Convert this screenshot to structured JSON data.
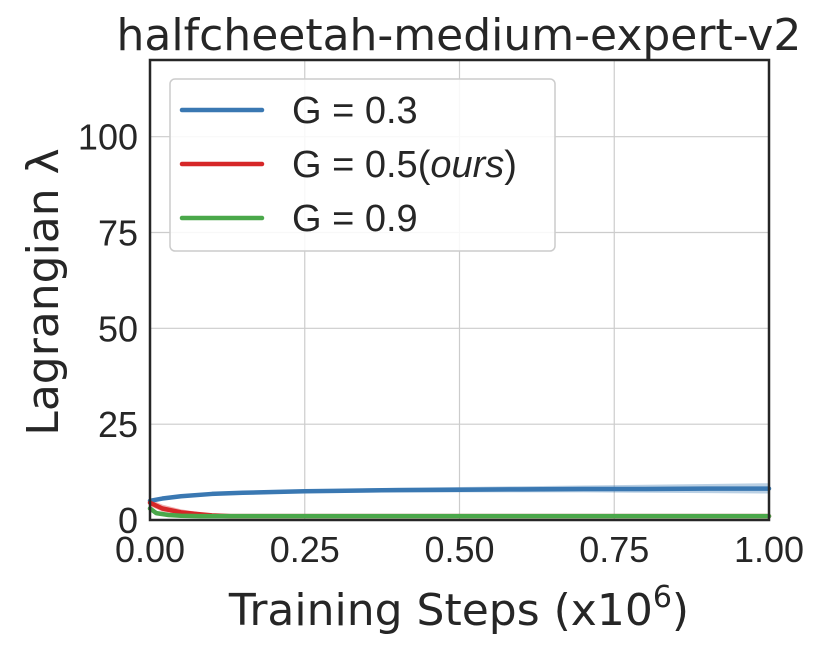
{
  "chart_data": {
    "type": "line",
    "title": "halfcheetah-medium-expert-v2",
    "xlabel": "Training Steps (x10",
    "xlabel_exponent": "6",
    "xlabel_close": ")",
    "ylabel": "Lagrangian λ",
    "xlim": [
      0.0,
      1.0
    ],
    "ylim": [
      0,
      120
    ],
    "xticks": [
      "0.00",
      "0.25",
      "0.50",
      "0.75",
      "1.00"
    ],
    "xtick_values": [
      0.0,
      0.25,
      0.5,
      0.75,
      1.0
    ],
    "yticks": [
      "0",
      "25",
      "50",
      "75",
      "100"
    ],
    "ytick_values": [
      0,
      25,
      50,
      75,
      100
    ],
    "grid": true,
    "legend_position": "top-left",
    "series": [
      {
        "name": "G = 0.3",
        "legend_main": "G = 0.3",
        "legend_suffix": "",
        "color": "#3a78b2",
        "x": [
          0.0,
          0.02,
          0.05,
          0.1,
          0.15,
          0.2,
          0.25,
          0.3,
          0.4,
          0.5,
          0.6,
          0.7,
          0.8,
          0.9,
          1.0
        ],
        "y": [
          5.0,
          5.6,
          6.2,
          6.8,
          7.1,
          7.3,
          7.5,
          7.6,
          7.8,
          7.9,
          8.0,
          8.1,
          8.1,
          8.2,
          8.2
        ],
        "lower": [
          4.6,
          5.2,
          5.8,
          6.4,
          6.7,
          6.9,
          7.0,
          7.1,
          7.2,
          7.2,
          7.2,
          7.2,
          7.1,
          7.0,
          6.9
        ],
        "upper": [
          5.4,
          6.0,
          6.6,
          7.2,
          7.5,
          7.7,
          8.0,
          8.1,
          8.4,
          8.6,
          8.8,
          9.0,
          9.2,
          9.4,
          9.6
        ]
      },
      {
        "name": "G = 0.5(ours)",
        "legend_main": "G = 0.5(",
        "legend_suffix": "ours",
        "legend_close": ")",
        "color": "#d62728",
        "x": [
          0.0,
          0.02,
          0.05,
          0.08,
          0.1,
          0.13,
          0.2,
          0.4,
          0.6,
          0.8,
          1.0
        ],
        "y": [
          4.5,
          3.0,
          2.0,
          1.5,
          1.2,
          1.0,
          1.0,
          1.0,
          1.0,
          1.0,
          1.0
        ],
        "lower": [
          3.6,
          2.2,
          1.4,
          1.1,
          0.9,
          0.8,
          0.8,
          0.8,
          0.8,
          0.8,
          0.8
        ],
        "upper": [
          5.4,
          4.0,
          2.8,
          2.0,
          1.6,
          1.3,
          1.2,
          1.2,
          1.2,
          1.2,
          1.2
        ]
      },
      {
        "name": "G = 0.9",
        "legend_main": "G = 0.9",
        "legend_suffix": "",
        "color": "#4aa84a",
        "x": [
          0.0,
          0.01,
          0.03,
          0.05,
          0.08,
          0.12,
          0.2,
          0.4,
          0.6,
          0.8,
          1.0
        ],
        "y": [
          3.0,
          1.8,
          1.3,
          1.1,
          1.0,
          1.0,
          1.0,
          1.0,
          1.0,
          1.0,
          1.0
        ],
        "lower": [
          2.4,
          1.4,
          1.0,
          0.9,
          0.8,
          0.8,
          0.8,
          0.8,
          0.8,
          0.8,
          0.8
        ],
        "upper": [
          3.6,
          2.2,
          1.6,
          1.3,
          1.2,
          1.2,
          1.2,
          1.2,
          1.2,
          1.2,
          1.2
        ]
      }
    ]
  }
}
